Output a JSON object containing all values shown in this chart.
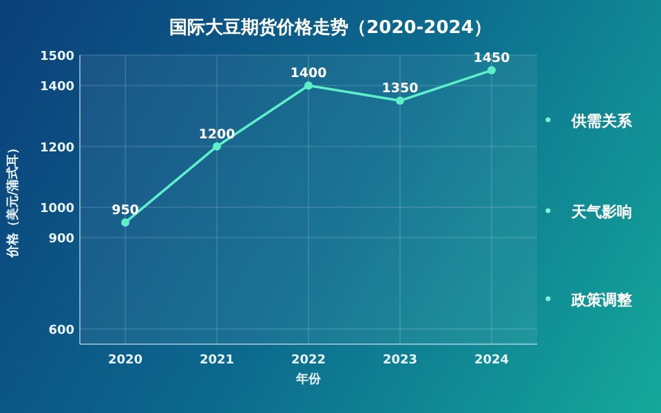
{
  "chart_data": {
    "type": "line",
    "title": "国际大豆期货价格走势（2020-2024）",
    "xlabel": "年份",
    "ylabel": "价格（美元/蒲式耳）",
    "categories": [
      "2020",
      "2021",
      "2022",
      "2023",
      "2024"
    ],
    "series": [
      {
        "color": "#5ef0c8",
        "values": [
          950,
          1200,
          1400,
          1350,
          1450
        ]
      }
    ],
    "ylim": [
      550,
      1500
    ],
    "yticks": [
      600,
      900,
      1000,
      1200,
      1400,
      1500
    ],
    "data_labels": true,
    "marker": "circle",
    "grid": true,
    "annotations": [
      "供需关系",
      "天气影响",
      "政策调整"
    ]
  }
}
